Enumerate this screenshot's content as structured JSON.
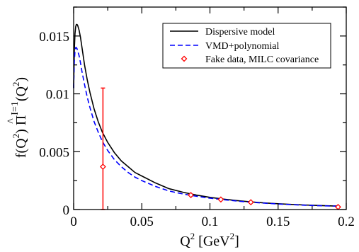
{
  "chart_data": {
    "type": "line",
    "xlabel": {
      "base": "Q",
      "sup1": "2",
      "unit_open": " [GeV",
      "sup2": "2",
      "unit_close": "]"
    },
    "ylabel": {
      "part1": "f(Q",
      "sup1": "2",
      "part2": ") ",
      "pi": "Π",
      "hat": "^",
      "sup_index": "I=1",
      "part3": "(Q",
      "sup2": "2",
      "part4": ")"
    },
    "xlim": [
      0,
      0.2
    ],
    "ylim": [
      0,
      0.0175
    ],
    "x_ticks": [
      0,
      0.05,
      0.1,
      0.15,
      0.2
    ],
    "x_tick_labels": [
      "0",
      "0.05",
      "0.1",
      "0.15",
      "0.2"
    ],
    "y_ticks": [
      0,
      0.005,
      0.01,
      0.015
    ],
    "y_tick_labels": [
      "0",
      "0.005",
      "0.01",
      "0.015"
    ],
    "legend_position": "top-right",
    "series": [
      {
        "name": "Dispersive model",
        "color": "#000000",
        "style": "solid",
        "x": [
          0,
          0.0005,
          0.001,
          0.0015,
          0.002,
          0.0025,
          0.003,
          0.004,
          0.005,
          0.006,
          0.008,
          0.01,
          0.012,
          0.015,
          0.018,
          0.021,
          0.025,
          0.03,
          0.035,
          0.04,
          0.045,
          0.05,
          0.06,
          0.07,
          0.08,
          0.09,
          0.1,
          0.11,
          0.12,
          0.13,
          0.14,
          0.15,
          0.16,
          0.17,
          0.18,
          0.19,
          0.195
        ],
        "y": [
          0.0105,
          0.0138,
          0.0152,
          0.0158,
          0.016,
          0.016,
          0.0159,
          0.0155,
          0.0149,
          0.0141,
          0.0125,
          0.0112,
          0.0101,
          0.0087,
          0.0076,
          0.0067,
          0.0058,
          0.0049,
          0.0042,
          0.0037,
          0.0032,
          0.0029,
          0.0023,
          0.0018,
          0.0015,
          0.00125,
          0.00105,
          0.0009,
          0.00077,
          0.00066,
          0.00057,
          0.0005,
          0.00044,
          0.00039,
          0.00035,
          0.00031,
          0.0003
        ]
      },
      {
        "name": "VMD+polynomial",
        "color": "#0000ff",
        "style": "dashed",
        "x": [
          0,
          0.0005,
          0.001,
          0.0015,
          0.002,
          0.0025,
          0.003,
          0.004,
          0.005,
          0.006,
          0.008,
          0.01,
          0.012,
          0.015,
          0.018,
          0.021,
          0.025,
          0.03,
          0.035,
          0.04,
          0.045,
          0.05,
          0.06,
          0.07,
          0.08,
          0.09,
          0.1,
          0.11,
          0.12,
          0.13,
          0.14,
          0.15,
          0.16,
          0.17,
          0.18,
          0.19,
          0.195
        ],
        "y": [
          0.0105,
          0.0128,
          0.0137,
          0.014,
          0.014,
          0.0139,
          0.0137,
          0.0133,
          0.0127,
          0.012,
          0.0108,
          0.0097,
          0.0088,
          0.0076,
          0.0067,
          0.0059,
          0.0051,
          0.0043,
          0.0037,
          0.0032,
          0.0028,
          0.0025,
          0.002,
          0.0016,
          0.00135,
          0.00115,
          0.00098,
          0.00085,
          0.00073,
          0.00063,
          0.00055,
          0.00048,
          0.00042,
          0.00037,
          0.00033,
          0.0003,
          0.00028
        ]
      },
      {
        "name": "Fake data, MILC covariance",
        "color": "#ff0000",
        "style": "points",
        "marker": "diamond",
        "x": [
          0.0215,
          0.086,
          0.108,
          0.13,
          0.194
        ],
        "y": [
          0.0037,
          0.00125,
          0.00087,
          0.00063,
          0.00022
        ],
        "yerr_low": [
          0.0037,
          5e-05,
          5e-05,
          5e-05,
          5e-05
        ],
        "yerr_high": [
          0.0068,
          5e-05,
          5e-05,
          5e-05,
          5e-05
        ]
      }
    ]
  }
}
